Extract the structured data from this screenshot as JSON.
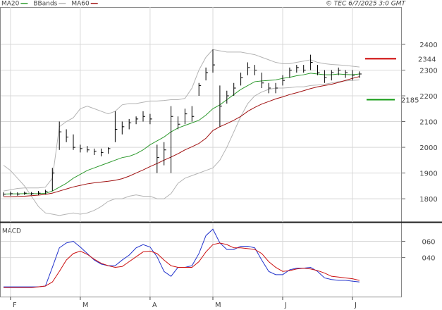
{
  "chart_data": [
    {
      "type": "ohlc",
      "copyright": "© TEC 6/7/2025 3:0 GMT",
      "high": [
        1825,
        1828,
        1825,
        1828,
        1826,
        1830,
        1835,
        1920,
        2100,
        2070,
        2050,
        2010,
        2005,
        1995,
        1995,
        2000,
        2140,
        2100,
        2110,
        2120,
        2140,
        2130,
        2010,
        2020,
        2160,
        2120,
        2150,
        2160,
        2250,
        2310,
        2380,
        2240,
        2220,
        2250,
        2290,
        2330,
        2320,
        2290,
        2250,
        2250,
        2280,
        2310,
        2320,
        2320,
        2360,
        2320,
        2300,
        2300,
        2310,
        2300,
        2300,
        2295
      ],
      "low": [
        1810,
        1812,
        1812,
        1815,
        1814,
        1815,
        1818,
        1830,
        1990,
        2020,
        1990,
        1980,
        1980,
        1970,
        1965,
        1975,
        2020,
        2050,
        2070,
        2090,
        2100,
        2090,
        1900,
        1930,
        1900,
        2070,
        2090,
        2100,
        2200,
        2260,
        2290,
        2080,
        2170,
        2200,
        2240,
        2280,
        2280,
        2230,
        2210,
        2210,
        2240,
        2270,
        2290,
        2290,
        2300,
        2280,
        2250,
        2260,
        2280,
        2270,
        2260,
        2270
      ],
      "close": [
        1818,
        1820,
        1818,
        1822,
        1820,
        1822,
        1828,
        1900,
        2060,
        2040,
        2000,
        1995,
        1990,
        1985,
        1980,
        1995,
        2070,
        2080,
        2095,
        2110,
        2120,
        2110,
        1960,
        1990,
        2120,
        2090,
        2130,
        2120,
        2240,
        2290,
        2320,
        2160,
        2200,
        2230,
        2270,
        2310,
        2300,
        2250,
        2230,
        2230,
        2260,
        2300,
        2310,
        2300,
        2330,
        2290,
        2270,
        2290,
        2300,
        2290,
        2280,
        2285
      ],
      "bar_color": "#000000",
      "series": [
        {
          "name": "MA20",
          "color": "#2e9a2e",
          "values": [
            1818,
            1819,
            1819,
            1820,
            1820,
            1820,
            1821,
            1830,
            1845,
            1860,
            1880,
            1895,
            1910,
            1920,
            1930,
            1940,
            1950,
            1960,
            1965,
            1975,
            1990,
            2010,
            2025,
            2040,
            2060,
            2075,
            2085,
            2095,
            2105,
            2125,
            2150,
            2165,
            2185,
            2205,
            2225,
            2240,
            2255,
            2258,
            2260,
            2262,
            2268,
            2272,
            2278,
            2282,
            2288,
            2285,
            2282,
            2282,
            2285,
            2283,
            2282,
            2285
          ]
        },
        {
          "name": "BBands",
          "color": "#b4b4b4",
          "values": [
            1830,
            1835,
            1840,
            1842,
            1842,
            1842,
            1845,
            1880,
            2080,
            2100,
            2115,
            2150,
            2160,
            2150,
            2140,
            2130,
            2140,
            2165,
            2170,
            2170,
            2175,
            2180,
            2180,
            2182,
            2185,
            2185,
            2190,
            2230,
            2300,
            2350,
            2380,
            2375,
            2370,
            2370,
            2370,
            2365,
            2360,
            2350,
            2340,
            2330,
            2325,
            2325,
            2330,
            2335,
            2340,
            2330,
            2325,
            2322,
            2320,
            2318,
            2315,
            2312
          ],
          "lower": [
            1930,
            1910,
            1880,
            1850,
            1810,
            1770,
            1745,
            1740,
            1735,
            1740,
            1745,
            1740,
            1745,
            1755,
            1770,
            1790,
            1800,
            1800,
            1810,
            1815,
            1810,
            1810,
            1800,
            1800,
            1820,
            1860,
            1880,
            1890,
            1900,
            1910,
            1920,
            1950,
            2000,
            2060,
            2120,
            2170,
            2200,
            2215,
            2225,
            2230,
            2230,
            2232,
            2235,
            2235,
            2240,
            2242,
            2245,
            2250,
            2255,
            2258,
            2260,
            2262
          ]
        },
        {
          "name": "MA60",
          "color": "#a01010",
          "values": [
            1808,
            1808,
            1809,
            1810,
            1812,
            1814,
            1817,
            1822,
            1830,
            1838,
            1846,
            1852,
            1858,
            1862,
            1865,
            1868,
            1872,
            1878,
            1888,
            1900,
            1912,
            1925,
            1937,
            1950,
            1962,
            1975,
            1990,
            2002,
            2015,
            2035,
            2065,
            2080,
            2092,
            2105,
            2120,
            2140,
            2155,
            2168,
            2178,
            2188,
            2196,
            2205,
            2212,
            2220,
            2228,
            2235,
            2240,
            2245,
            2252,
            2260,
            2268,
            2275
          ]
        }
      ],
      "levels": [
        {
          "value": 2344,
          "color": "#cc0000"
        },
        {
          "value": 2185,
          "color": "#119911"
        }
      ],
      "ylim": [
        1710,
        2545
      ],
      "yticks": [
        1800,
        1900,
        2000,
        2100,
        2200,
        2300,
        2400
      ],
      "grid": true
    },
    {
      "type": "line",
      "title": "MACD",
      "categories": [
        null,
        "F",
        null,
        null,
        null,
        null,
        null,
        null,
        null,
        null,
        null,
        "M",
        null,
        null,
        null,
        null,
        null,
        null,
        null,
        null,
        null,
        "A",
        null,
        null,
        null,
        null,
        null,
        null,
        null,
        null,
        "M",
        null,
        null,
        null,
        null,
        null,
        null,
        null,
        null,
        null,
        "J",
        null,
        null,
        null,
        null,
        null,
        null,
        null,
        null,
        null,
        "J",
        null
      ],
      "series": [
        {
          "color": "#2233cc",
          "values": [
            4,
            4,
            4,
            4,
            4,
            4,
            5,
            28,
            52,
            58,
            60,
            53,
            45,
            37,
            32,
            30,
            30,
            37,
            43,
            52,
            56,
            53,
            41,
            23,
            17,
            28,
            28,
            30,
            45,
            67,
            75,
            58,
            50,
            50,
            54,
            54,
            52,
            37,
            23,
            19,
            19,
            25,
            27,
            27,
            28,
            23,
            15,
            13,
            12,
            12,
            11,
            10
          ]
        },
        {
          "color": "#cc1111",
          "values": [
            3,
            3,
            3,
            3,
            3,
            4,
            5,
            10,
            23,
            37,
            45,
            48,
            44,
            38,
            33,
            30,
            28,
            29,
            35,
            41,
            47,
            48,
            45,
            37,
            30,
            28,
            28,
            28,
            35,
            47,
            56,
            58,
            56,
            52,
            52,
            51,
            50,
            45,
            35,
            28,
            23,
            24,
            26,
            27,
            26,
            24,
            21,
            17,
            16,
            15,
            14,
            12
          ]
        }
      ],
      "ylim": [
        -8,
        83
      ],
      "yticks": [
        {
          "value": 40,
          "label": "040"
        },
        {
          "value": 60,
          "label": "060"
        }
      ],
      "grid": true
    }
  ]
}
